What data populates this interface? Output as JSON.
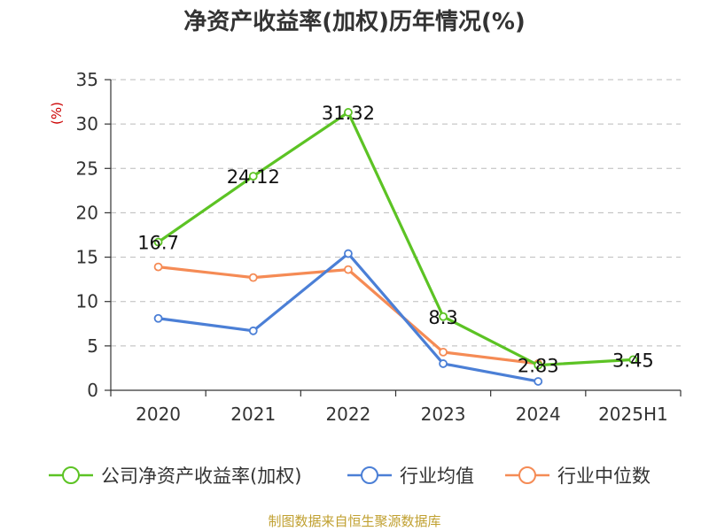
{
  "title": "净资产收益率(加权)历年情况(%)",
  "source": "制图数据来自恒生聚源数据库",
  "chart_data": {
    "type": "line",
    "title": "净资产收益率(加权)历年情况(%)",
    "ylabel": "(%)",
    "xlabel": "",
    "categories": [
      "2020",
      "2021",
      "2022",
      "2023",
      "2024",
      "2025H1"
    ],
    "ylim": [
      0,
      35
    ],
    "yticks": [
      0,
      5,
      10,
      15,
      20,
      25,
      30,
      35
    ],
    "grid": true,
    "legend_position": "bottom",
    "series": [
      {
        "name": "公司净资产收益率(加权)",
        "color": "#5cc324",
        "values": [
          16.7,
          24.12,
          31.32,
          8.3,
          2.83,
          3.45
        ],
        "labels": [
          "16.7",
          "24.12",
          "31.32",
          "8.3",
          "2.83",
          "3.45"
        ]
      },
      {
        "name": "行业均值",
        "color": "#4b7fd6",
        "values": [
          8.1,
          6.7,
          15.4,
          3.0,
          1.0,
          null
        ]
      },
      {
        "name": "行业中位数",
        "color": "#f58b55",
        "values": [
          13.9,
          12.7,
          13.6,
          4.3,
          3.0,
          null
        ]
      }
    ]
  }
}
